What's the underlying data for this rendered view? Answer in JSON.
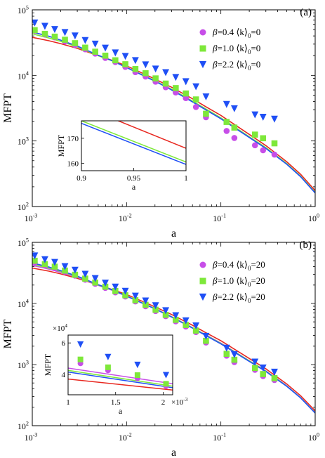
{
  "colors": {
    "magenta": "#c74ee8",
    "green": "#7ee83a",
    "blue": "#1f4ff5",
    "red": "#e8271f",
    "axis": "#000000"
  },
  "chart_data": [
    {
      "type": "scatter",
      "panel_label": "(a)",
      "xlabel": "a",
      "ylabel": "MFPT",
      "xscale": "log",
      "yscale": "log",
      "xlim": [
        0.001,
        1
      ],
      "ylim": [
        100,
        100000
      ],
      "x_ticks": [
        {
          "base": "10",
          "exp": "-3"
        },
        {
          "base": "10",
          "exp": "-2"
        },
        {
          "base": "10",
          "exp": "-1"
        },
        {
          "base": "10",
          "exp": "0"
        }
      ],
      "y_ticks": [
        {
          "base": "10",
          "exp": "2"
        },
        {
          "base": "10",
          "exp": "3"
        },
        {
          "base": "10",
          "exp": "4"
        },
        {
          "base": "10",
          "exp": "5"
        }
      ],
      "legend_position": "top-right",
      "legend": [
        {
          "beta": "β",
          "text": "=0.4 ⟨k⟩",
          "sub": "0",
          "suffix": "=0",
          "marker": "circle",
          "color": "#c74ee8"
        },
        {
          "beta": "β",
          "text": "=1.0 ⟨k⟩",
          "sub": "0",
          "suffix": "=0",
          "marker": "square",
          "color": "#7ee83a"
        },
        {
          "beta": "β",
          "text": "=2.2 ⟨k⟩",
          "sub": "0",
          "suffix": "=0",
          "marker": "triangle",
          "color": "#1f4ff5"
        }
      ],
      "series": [
        {
          "name": "β=0.4 ⟨k⟩0=0",
          "marker": "circle",
          "color": "#c74ee8",
          "x": [
            0.00106,
            0.00136,
            0.00173,
            0.00222,
            0.00284,
            0.00364,
            0.00465,
            0.00595,
            0.0076,
            0.0097,
            0.0124,
            0.0159,
            0.0203,
            0.026,
            0.0332,
            0.0425,
            0.0544,
            0.0695,
            0.115,
            0.139,
            0.23,
            0.28,
            0.37
          ],
          "y": [
            48000,
            42000,
            38000,
            33000,
            29000,
            25000,
            21500,
            18500,
            16000,
            13500,
            11200,
            9600,
            8000,
            6600,
            5500,
            4500,
            3300,
            2300,
            1420,
            1110,
            860,
            720,
            620
          ]
        },
        {
          "name": "β=1.0 ⟨k⟩0=0",
          "marker": "square",
          "color": "#7ee83a",
          "x": [
            0.00106,
            0.00136,
            0.00173,
            0.00222,
            0.00284,
            0.00364,
            0.00465,
            0.00595,
            0.0076,
            0.0097,
            0.0124,
            0.0159,
            0.0203,
            0.026,
            0.0332,
            0.0425,
            0.0544,
            0.0695,
            0.115,
            0.139,
            0.23,
            0.28,
            0.37
          ],
          "y": [
            49000,
            43000,
            39000,
            35000,
            31000,
            26500,
            23000,
            20000,
            17000,
            14800,
            12500,
            10800,
            9000,
            7500,
            6400,
            5300,
            4300,
            2600,
            1950,
            1600,
            1250,
            1100,
            920
          ]
        },
        {
          "name": "β=2.2 ⟨k⟩0=0",
          "marker": "triangle",
          "color": "#1f4ff5",
          "x": [
            0.00106,
            0.00136,
            0.00173,
            0.00222,
            0.00284,
            0.00364,
            0.00465,
            0.00595,
            0.0076,
            0.0097,
            0.0124,
            0.0159,
            0.0203,
            0.026,
            0.0332,
            0.0425,
            0.0544,
            0.0695,
            0.115,
            0.139,
            0.23,
            0.28,
            0.37
          ],
          "y": [
            63000,
            56000,
            50000,
            45000,
            40000,
            34000,
            30000,
            26000,
            22000,
            19500,
            16800,
            14500,
            12500,
            11000,
            9300,
            8000,
            6700,
            4700,
            3600,
            3100,
            2500,
            2300,
            2150
          ]
        }
      ],
      "lines": [
        {
          "name": "curve-red",
          "color": "#e8271f",
          "x": [
            0.001,
            0.0015,
            0.002,
            0.003,
            0.005,
            0.007,
            0.01,
            0.02,
            0.03,
            0.05,
            0.07,
            0.1,
            0.2,
            0.3,
            0.5,
            0.7,
            1
          ],
          "y": [
            38000,
            33800,
            30500,
            25800,
            20000,
            17000,
            14000,
            8800,
            6600,
            4400,
            3300,
            2450,
            1260,
            850,
            480,
            310,
            175
          ]
        },
        {
          "name": "curve-green",
          "color": "#7ee83a",
          "x": [
            0.001,
            0.0015,
            0.002,
            0.003,
            0.005,
            0.007,
            0.01,
            0.02,
            0.03,
            0.05,
            0.07,
            0.1,
            0.2,
            0.3,
            0.5,
            0.7,
            1
          ],
          "y": [
            43000,
            37200,
            33000,
            27200,
            20000,
            16700,
            13300,
            8300,
            6150,
            4050,
            3050,
            2250,
            1160,
            790,
            450,
            290,
            164
          ]
        },
        {
          "name": "curve-blue",
          "color": "#1f4ff5",
          "x": [
            0.001,
            0.0015,
            0.002,
            0.003,
            0.005,
            0.007,
            0.01,
            0.02,
            0.03,
            0.05,
            0.07,
            0.1,
            0.2,
            0.3,
            0.5,
            0.7,
            1
          ],
          "y": [
            46000,
            39500,
            34500,
            28000,
            20300,
            16800,
            13200,
            8150,
            6000,
            3950,
            2950,
            2180,
            1130,
            770,
            440,
            285,
            161
          ]
        }
      ],
      "inset": {
        "xlabel": "a",
        "ylabel": "MFPT",
        "xscale": "linear",
        "yscale": "linear",
        "xlim": [
          0.9,
          1.0
        ],
        "ylim": [
          157,
          177
        ],
        "x_ticks": [
          "0.9",
          "0.95",
          "1"
        ],
        "y_ticks": [
          "160",
          "170"
        ],
        "x_tick_values": [
          0.9,
          0.95,
          1.0
        ],
        "y_tick_values": [
          160,
          170
        ],
        "lines": [
          {
            "name": "inset-red",
            "color": "#e8271f",
            "x": [
              0.9,
              1.0
            ],
            "y": [
              183,
              166
            ]
          },
          {
            "name": "inset-green",
            "color": "#7ee83a",
            "x": [
              0.9,
              1.0
            ],
            "y": [
              177,
              160.5
            ]
          },
          {
            "name": "inset-blue",
            "color": "#1f4ff5",
            "x": [
              0.9,
              1.0
            ],
            "y": [
              176,
              159.5
            ]
          }
        ]
      }
    },
    {
      "type": "scatter",
      "panel_label": "(b)",
      "xlabel": "a",
      "ylabel": "MFPT",
      "xscale": "log",
      "yscale": "log",
      "xlim": [
        0.001,
        1
      ],
      "ylim": [
        100,
        100000
      ],
      "x_ticks": [
        {
          "base": "10",
          "exp": "-3"
        },
        {
          "base": "10",
          "exp": "-2"
        },
        {
          "base": "10",
          "exp": "-1"
        },
        {
          "base": "10",
          "exp": "0"
        }
      ],
      "y_ticks": [
        {
          "base": "10",
          "exp": "2"
        },
        {
          "base": "10",
          "exp": "3"
        },
        {
          "base": "10",
          "exp": "4"
        },
        {
          "base": "10",
          "exp": "5"
        }
      ],
      "legend_position": "top-right",
      "legend": [
        {
          "beta": "β",
          "text": "=0.4 ⟨k⟩",
          "sub": "0",
          "suffix": "=20",
          "marker": "circle",
          "color": "#c74ee8"
        },
        {
          "beta": "β",
          "text": "=1.0 ⟨k⟩",
          "sub": "0",
          "suffix": "=20",
          "marker": "square",
          "color": "#7ee83a"
        },
        {
          "beta": "β",
          "text": "=2.2 ⟨k⟩",
          "sub": "0",
          "suffix": "=20",
          "marker": "triangle",
          "color": "#1f4ff5"
        }
      ],
      "series": [
        {
          "name": "β=0.4 ⟨k⟩0=20",
          "marker": "circle",
          "color": "#c74ee8",
          "x": [
            0.00106,
            0.00136,
            0.00173,
            0.00222,
            0.00284,
            0.00364,
            0.00465,
            0.00595,
            0.0076,
            0.0097,
            0.0124,
            0.0159,
            0.0203,
            0.026,
            0.0332,
            0.0425,
            0.0544,
            0.0695,
            0.115,
            0.139,
            0.23,
            0.28,
            0.37
          ],
          "y": [
            47000,
            42000,
            38000,
            33000,
            28500,
            24500,
            21000,
            18000,
            15200,
            13000,
            10800,
            9000,
            7500,
            6200,
            5100,
            4200,
            3400,
            2300,
            1400,
            1100,
            820,
            650,
            560
          ]
        },
        {
          "name": "β=1.0 ⟨k⟩0=20",
          "marker": "square",
          "color": "#7ee83a",
          "x": [
            0.00106,
            0.00136,
            0.00173,
            0.00222,
            0.00284,
            0.00364,
            0.00465,
            0.00595,
            0.0076,
            0.0097,
            0.0124,
            0.0159,
            0.0203,
            0.026,
            0.0332,
            0.0425,
            0.0544,
            0.0695,
            0.115,
            0.139,
            0.23,
            0.28,
            0.37
          ],
          "y": [
            50000,
            44000,
            40000,
            34500,
            29500,
            25500,
            22000,
            18800,
            16000,
            13600,
            11300,
            9500,
            7900,
            6500,
            5400,
            4450,
            3600,
            2450,
            1500,
            1200,
            880,
            700,
            600
          ]
        },
        {
          "name": "β=2.2 ⟨k⟩0=20",
          "marker": "triangle",
          "color": "#1f4ff5",
          "x": [
            0.00106,
            0.00136,
            0.00173,
            0.00222,
            0.00284,
            0.00364,
            0.00465,
            0.00595,
            0.0076,
            0.0097,
            0.0124,
            0.0159,
            0.0203,
            0.026,
            0.0332,
            0.0425,
            0.0544,
            0.0695,
            0.115,
            0.139,
            0.23,
            0.28,
            0.37
          ],
          "y": [
            60000,
            52000,
            47000,
            40000,
            35000,
            30000,
            25500,
            21500,
            18500,
            15800,
            13200,
            11000,
            9200,
            7600,
            6300,
            5200,
            4300,
            2900,
            1850,
            1450,
            1100,
            880,
            750
          ]
        }
      ],
      "lines": [
        {
          "name": "curve-red",
          "color": "#e8271f",
          "x": [
            0.001,
            0.0015,
            0.002,
            0.003,
            0.005,
            0.007,
            0.01,
            0.02,
            0.03,
            0.05,
            0.07,
            0.1,
            0.2,
            0.3,
            0.5,
            0.7,
            1
          ],
          "y": [
            38000,
            33800,
            30500,
            25800,
            20000,
            17000,
            14000,
            8800,
            6600,
            4400,
            3300,
            2450,
            1260,
            850,
            480,
            310,
            175
          ]
        },
        {
          "name": "curve-magenta",
          "color": "#c74ee8",
          "x": [
            0.001,
            0.0015,
            0.002,
            0.003,
            0.005,
            0.007,
            0.01,
            0.02,
            0.03,
            0.05,
            0.07,
            0.1,
            0.2,
            0.3,
            0.5,
            0.7,
            1
          ],
          "y": [
            42000,
            36500,
            32300,
            26800,
            19800,
            16500,
            13200,
            8250,
            6100,
            4020,
            3030,
            2240,
            1155,
            785,
            448,
            288,
            163
          ]
        },
        {
          "name": "curve-green",
          "color": "#7ee83a",
          "x": [
            0.001,
            0.0015,
            0.002,
            0.003,
            0.005,
            0.007,
            0.01,
            0.02,
            0.03,
            0.05,
            0.07,
            0.1,
            0.2,
            0.3,
            0.5,
            0.7,
            1
          ],
          "y": [
            44000,
            38000,
            33500,
            27500,
            20100,
            16700,
            13250,
            8200,
            6050,
            4000,
            3000,
            2220,
            1150,
            780,
            445,
            287,
            162
          ]
        },
        {
          "name": "curve-blue",
          "color": "#1f4ff5",
          "x": [
            0.001,
            0.0015,
            0.002,
            0.003,
            0.005,
            0.007,
            0.01,
            0.02,
            0.03,
            0.05,
            0.07,
            0.1,
            0.2,
            0.3,
            0.5,
            0.7,
            1
          ],
          "y": [
            46000,
            39500,
            34500,
            28000,
            20300,
            16800,
            13200,
            8150,
            6000,
            3950,
            2950,
            2180,
            1130,
            770,
            440,
            285,
            161
          ]
        }
      ],
      "inset": {
        "xlabel": "a",
        "ylabel": "MFPT",
        "xscale": "linear",
        "yscale": "linear",
        "xlim": [
          0.001,
          0.0021
        ],
        "ylim": [
          27000,
          65000
        ],
        "x_ticks": [
          "1",
          "1.5",
          "2"
        ],
        "y_ticks": [
          "4",
          "6"
        ],
        "x_tick_values": [
          0.001,
          0.0015,
          0.002
        ],
        "y_tick_values": [
          40000,
          60000
        ],
        "x_multiplier": {
          "prefix": "×10",
          "exp": "-3"
        },
        "y_multiplier": {
          "prefix": "×10",
          "exp": "4"
        },
        "series": [
          {
            "name": "inset-circle",
            "marker": "circle",
            "color": "#c74ee8",
            "x": [
              0.00113,
              0.00142,
              0.00173,
              0.00203
            ],
            "y": [
              47000,
              42500,
              37500,
              32500
            ]
          },
          {
            "name": "inset-square",
            "marker": "square",
            "color": "#7ee83a",
            "x": [
              0.00113,
              0.00142,
              0.00173,
              0.00203
            ],
            "y": [
              49500,
              44500,
              39500,
              34000
            ]
          },
          {
            "name": "inset-triangle",
            "marker": "triangle",
            "color": "#1f4ff5",
            "x": [
              0.00113,
              0.00142,
              0.00173,
              0.00203
            ],
            "y": [
              59000,
              51000,
              46000,
              39500
            ]
          }
        ],
        "lines": [
          {
            "name": "inset-magenta",
            "color": "#c74ee8",
            "x": [
              0.001,
              0.0021
            ],
            "y": [
              44000,
              34000
            ]
          },
          {
            "name": "inset-green",
            "color": "#7ee83a",
            "x": [
              0.001,
              0.0021
            ],
            "y": [
              42500,
              32500
            ]
          },
          {
            "name": "inset-blue",
            "color": "#1f4ff5",
            "x": [
              0.001,
              0.0021
            ],
            "y": [
              41500,
              31500
            ]
          },
          {
            "name": "inset-red",
            "color": "#e8271f",
            "x": [
              0.001,
              0.0021
            ],
            "y": [
              37000,
              30000
            ]
          }
        ]
      }
    }
  ]
}
